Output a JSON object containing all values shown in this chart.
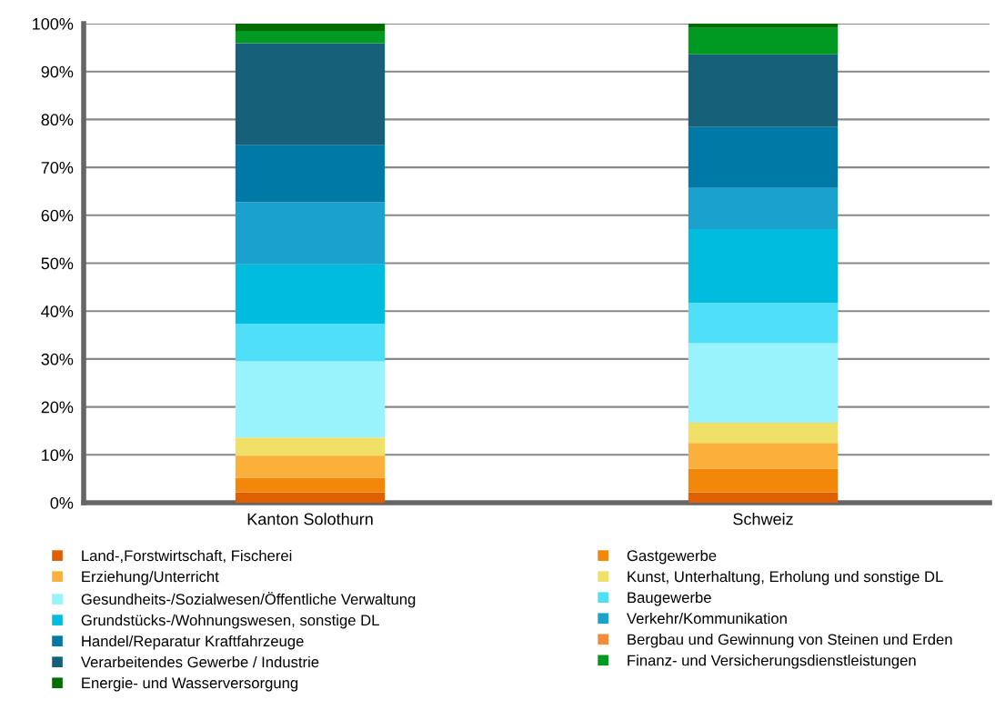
{
  "chart_data": {
    "type": "bar",
    "stacked": true,
    "categories": [
      "Kanton Solothurn",
      "Schweiz"
    ],
    "series": [
      {
        "name": "Land-,Forstwirtschaft, Fischerei",
        "color": "#e06000",
        "values": [
          2.2,
          2.2
        ]
      },
      {
        "name": "Gastgewerbe",
        "color": "#f28709",
        "values": [
          3.0,
          4.9
        ]
      },
      {
        "name": "Erziehung/Unterricht",
        "color": "#fbb03b",
        "values": [
          4.6,
          5.4
        ]
      },
      {
        "name": "Kunst, Unterhaltung, Erholung und sonstige DL",
        "color": "#f0e068",
        "values": [
          3.8,
          4.2
        ]
      },
      {
        "name": "Gesundheits-/Sozialwesen/Öffentliche Verwaltung",
        "color": "#99f3fd",
        "values": [
          15.9,
          16.6
        ]
      },
      {
        "name": "Baugewerbe",
        "color": "#4fdff9",
        "values": [
          7.9,
          8.4
        ]
      },
      {
        "name": "Grundstücks-/Wohnungswesen, sonstige DL",
        "color": "#00bde0",
        "values": [
          12.4,
          15.4
        ]
      },
      {
        "name": "Verkehr/Kommunikation",
        "color": "#1aa1ce",
        "values": [
          12.9,
          8.6
        ]
      },
      {
        "name": "Handel/Reparatur Kraftfahrzeuge",
        "color": "#0079a6",
        "values": [
          11.9,
          12.7
        ]
      },
      {
        "name": "Bergbau und Gewinnung von Steinen und Erden",
        "color": "#f28c38",
        "values": [
          0,
          0
        ]
      },
      {
        "name": "Verarbeitendes Gewerbe / Industrie",
        "color": "#17607a",
        "values": [
          21.3,
          15.2
        ]
      },
      {
        "name": "Finanz- und Versicherungsdienstleistungen",
        "color": "#009a22",
        "values": [
          2.6,
          5.5
        ]
      },
      {
        "name": "Energie- und Wasserversorgung",
        "color": "#006e00",
        "values": [
          1.5,
          0.9
        ]
      }
    ],
    "ylim": [
      0,
      100
    ],
    "yticks": [
      {
        "value": 0,
        "label": "0%"
      },
      {
        "value": 10,
        "label": "10%"
      },
      {
        "value": 20,
        "label": "20%"
      },
      {
        "value": 30,
        "label": "30%"
      },
      {
        "value": 40,
        "label": "40%"
      },
      {
        "value": 50,
        "label": "50%"
      },
      {
        "value": 60,
        "label": "60%"
      },
      {
        "value": 70,
        "label": "70%"
      },
      {
        "value": 80,
        "label": "80%"
      },
      {
        "value": 90,
        "label": "90%"
      },
      {
        "value": 100,
        "label": "100%"
      }
    ],
    "grid": "y",
    "legend": "bottom"
  }
}
